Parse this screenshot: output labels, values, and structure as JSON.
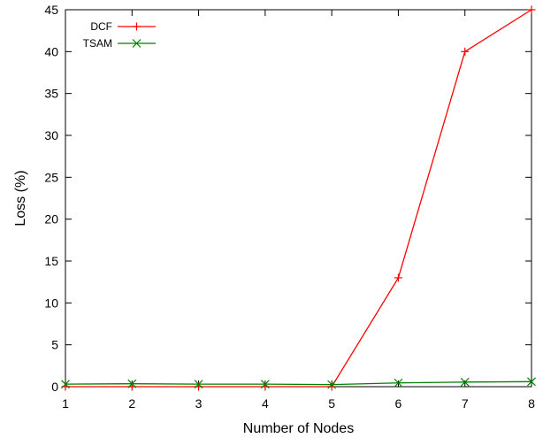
{
  "chart_data": {
    "type": "line",
    "xlabel": "Number of Nodes",
    "ylabel": "Loss (%)",
    "xlim": [
      1,
      8
    ],
    "ylim": [
      0,
      45
    ],
    "x_ticks": [
      "1",
      "2",
      "3",
      "4",
      "5",
      "6",
      "7",
      "8"
    ],
    "y_ticks": [
      "0",
      "5",
      "10",
      "15",
      "20",
      "25",
      "30",
      "35",
      "40",
      "45"
    ],
    "legend_position": "top-left",
    "grid": false,
    "series": [
      {
        "name": "DCF",
        "color": "#ff0000",
        "marker": "plus",
        "x": [
          1,
          2,
          3,
          4,
          5,
          6,
          7,
          8
        ],
        "y": [
          0,
          0,
          0,
          0,
          0,
          13,
          40,
          45
        ]
      },
      {
        "name": "TSAM",
        "color": "#008000",
        "marker": "cross",
        "x": [
          1,
          2,
          3,
          4,
          5,
          6,
          7,
          8
        ],
        "y": [
          0.3,
          0.35,
          0.3,
          0.3,
          0.25,
          0.45,
          0.55,
          0.6
        ]
      }
    ]
  }
}
